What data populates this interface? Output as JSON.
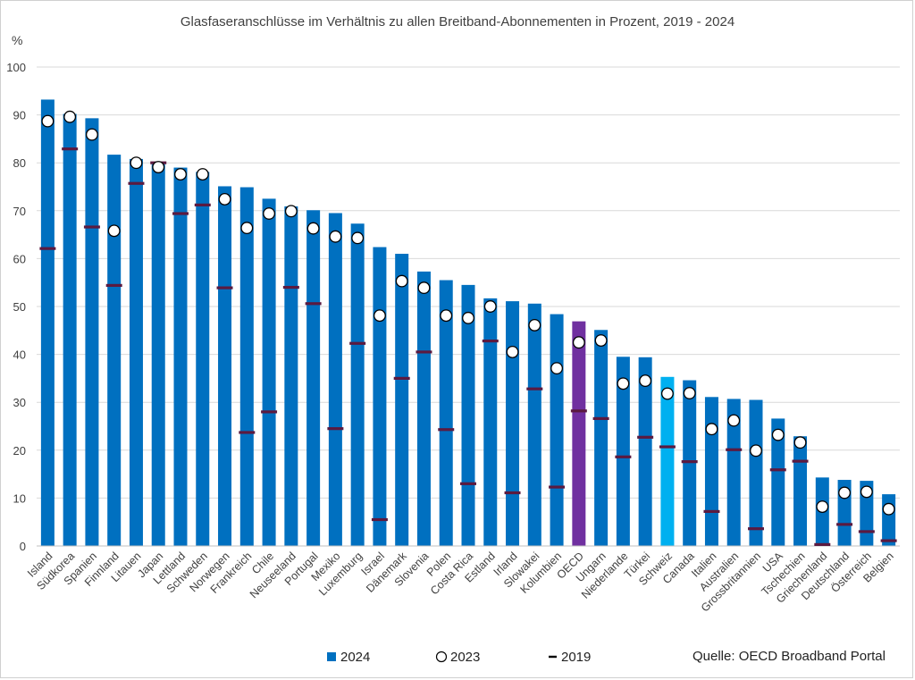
{
  "chart_data": {
    "type": "bar",
    "title": "Glasfaseranschlüsse im Verhältnis zu allen Breitband-Abonnementen in Prozent, 2019 - 2024",
    "ylabel": "%",
    "xlabel": "",
    "ylim": [
      0,
      100
    ],
    "yticks": [
      0,
      10,
      20,
      30,
      40,
      50,
      60,
      70,
      80,
      90,
      100
    ],
    "grid": true,
    "legend_position": "bottom",
    "categories": [
      "Island",
      "Südkorea",
      "Spanien",
      "Finnland",
      "Litauen",
      "Japan",
      "Lettland",
      "Schweden",
      "Norwegen",
      "Frankreich",
      "Chile",
      "Neuseeland",
      "Portugal",
      "Mexiko",
      "Luxemburg",
      "Israel",
      "Dänemark",
      "Slovenia",
      "Polen",
      "Costa Rica",
      "Estland",
      "Irland",
      "Slowakei",
      "Kolumbien",
      "OECD",
      "Ungarn",
      "Niederlande",
      "Türkei",
      "Schweiz",
      "Canada",
      "Italien",
      "Australien",
      "Grossbritannien",
      "USA",
      "Tschechien",
      "Griechenland",
      "Deutschland",
      "Österreich",
      "Belgien"
    ],
    "series": [
      {
        "name": "2024",
        "marker": "bar",
        "values": [
          93.2,
          90.2,
          89.3,
          81.7,
          80.8,
          79.7,
          79.0,
          78.1,
          75.1,
          74.9,
          72.5,
          70.9,
          70.1,
          69.5,
          67.3,
          62.4,
          61.0,
          57.3,
          55.5,
          54.5,
          51.7,
          51.1,
          50.6,
          48.4,
          46.9,
          45.1,
          39.5,
          39.4,
          35.3,
          34.6,
          31.1,
          30.7,
          30.5,
          26.6,
          22.9,
          14.3,
          13.8,
          13.6,
          10.8
        ]
      },
      {
        "name": "2023",
        "marker": "circle",
        "values": [
          88.7,
          89.6,
          85.9,
          65.8,
          80.0,
          79.1,
          77.6,
          77.6,
          72.4,
          66.4,
          69.4,
          69.9,
          66.3,
          64.6,
          64.3,
          48.1,
          55.3,
          53.9,
          48.1,
          47.6,
          50.0,
          40.5,
          46.1,
          37.1,
          42.5,
          42.9,
          33.9,
          34.5,
          31.8,
          31.9,
          24.4,
          26.2,
          19.9,
          23.2,
          21.6,
          8.2,
          11.1,
          11.3,
          7.7
        ]
      },
      {
        "name": "2019",
        "marker": "dash",
        "values": [
          62.1,
          82.9,
          66.6,
          54.4,
          75.7,
          80.0,
          69.4,
          71.2,
          53.9,
          23.7,
          28.0,
          54.0,
          50.6,
          24.5,
          42.3,
          5.5,
          35.0,
          40.5,
          24.3,
          13.0,
          42.8,
          11.1,
          32.8,
          12.3,
          28.2,
          26.6,
          18.6,
          22.7,
          20.7,
          17.6,
          7.2,
          20.1,
          3.6,
          15.9,
          17.7,
          0.3,
          4.5,
          3.0,
          1.1
        ]
      }
    ],
    "highlight": {
      "OECD": "#7030a0",
      "Schweiz": "#00b0f0"
    }
  },
  "colors": {
    "bar": "#0070c0",
    "oecd": "#7030a0",
    "schweiz": "#00b0f0",
    "dash": "#5b1a40",
    "circle_fill": "#ffffff",
    "circle_stroke": "#000000",
    "grid": "#d9d9d9",
    "axis": "#bfbfbf"
  },
  "source": "Quelle: OECD Broadband Portal"
}
